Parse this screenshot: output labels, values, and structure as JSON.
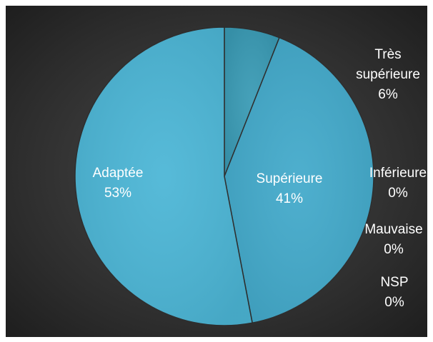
{
  "chart_data": {
    "type": "pie",
    "title": "",
    "slices": [
      {
        "label": "Très supérieure",
        "value": 6,
        "value_label": "6%",
        "color": "#3a9bb5"
      },
      {
        "label": "Supérieure",
        "value": 41,
        "value_label": "41%",
        "color": "#43aacb"
      },
      {
        "label": "Inférieure",
        "value": 0,
        "value_label": "0%",
        "color": "#4ab3d4"
      },
      {
        "label": "Mauvaise",
        "value": 0,
        "value_label": "0%",
        "color": "#4ab3d4"
      },
      {
        "label": "NSP",
        "value": 0,
        "value_label": "0%",
        "color": "#4ab3d4"
      },
      {
        "label": "Adaptée",
        "value": 53,
        "value_label": "53%",
        "color": "#4cb6d6"
      }
    ],
    "label_color_inside": "#ffffff",
    "label_color_outside": "#ffffff",
    "background": "#333333"
  }
}
